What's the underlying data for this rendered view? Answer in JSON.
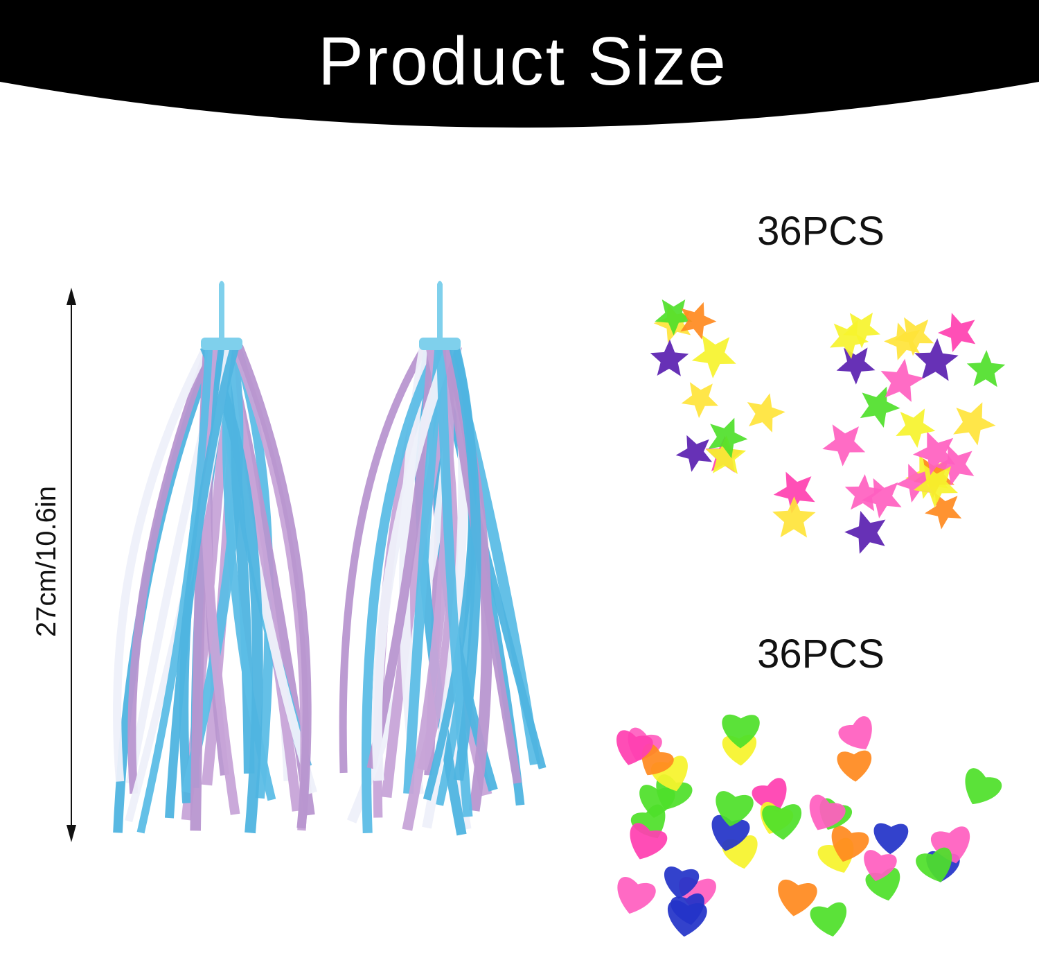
{
  "header": {
    "title": "Product Size"
  },
  "dimension": {
    "label": "27cm/10.6in"
  },
  "items": [
    {
      "count": "36PCS"
    },
    {
      "count": "36PCS"
    }
  ]
}
